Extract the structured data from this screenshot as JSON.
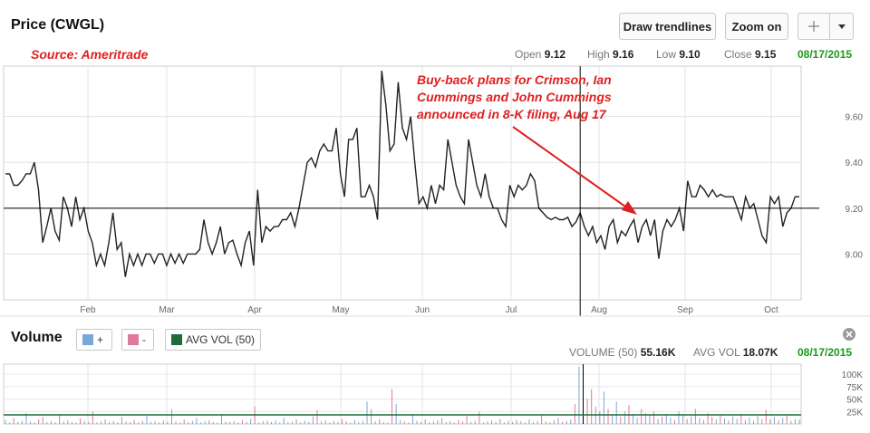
{
  "header": {
    "title": "Price (CWGL)",
    "source": "Source: Ameritrade",
    "buttons": {
      "draw": "Draw trendlines",
      "zoom": "Zoom on"
    },
    "crosshair_icon": "crosshair-icon",
    "dropdown_icon": "caret-down-icon"
  },
  "ohlc": {
    "open_label": "Open",
    "open": "9.12",
    "high_label": "High",
    "high": "9.16",
    "low_label": "Low",
    "low": "9.10",
    "close_label": "Close",
    "close": "9.15",
    "date": "08/17/2015"
  },
  "annotation": {
    "line1": "Buy-back plans for Crimson, Ian",
    "line2": "Cummings and John Cummings",
    "line3": "announced in 8-K filing, Aug 17"
  },
  "volume_panel": {
    "title": "Volume",
    "up_label": "+",
    "down_label": "-",
    "avg_label": "AVG VOL (50)",
    "volume_label": "VOLUME (50)",
    "volume_value": "55.16K",
    "avgvol_label": "AVG VOL",
    "avgvol_value": "18.07K",
    "date": "08/17/2015",
    "close_icon": "close-circle-icon"
  },
  "colors": {
    "up": "#7aa7d9",
    "down": "#e07a9a",
    "avg": "#1f6b3a",
    "accent_red": "#e02020",
    "green": "#1a9a1a"
  },
  "chart_data": [
    {
      "type": "line",
      "series_name": "CWGL",
      "x_ticks": [
        "Feb",
        "Mar",
        "Apr",
        "May",
        "Jun",
        "Jul",
        "Aug",
        "Sep",
        "Oct"
      ],
      "y_ticks": [
        "9.00",
        "9.20",
        "9.40",
        "9.60"
      ],
      "ylim": [
        8.8,
        9.82
      ],
      "crosshair": {
        "date_index": 139,
        "price": 9.2
      },
      "values": [
        9.35,
        9.35,
        9.3,
        9.3,
        9.32,
        9.35,
        9.35,
        9.4,
        9.28,
        9.05,
        9.12,
        9.2,
        9.1,
        9.06,
        9.25,
        9.2,
        9.12,
        9.25,
        9.15,
        9.2,
        9.1,
        9.05,
        8.95,
        9.0,
        8.95,
        9.05,
        9.18,
        9.02,
        9.05,
        8.9,
        9.0,
        8.95,
        9.0,
        8.95,
        9.0,
        9.0,
        8.96,
        9.0,
        9.0,
        8.95,
        9.0,
        8.96,
        9.0,
        8.96,
        9.0,
        9.0,
        9.0,
        9.02,
        9.15,
        9.05,
        9.0,
        9.05,
        9.12,
        9.0,
        9.05,
        9.06,
        9.0,
        8.95,
        9.05,
        9.1,
        8.95,
        9.28,
        9.05,
        9.12,
        9.1,
        9.12,
        9.12,
        9.15,
        9.15,
        9.18,
        9.12,
        9.2,
        9.3,
        9.4,
        9.42,
        9.38,
        9.45,
        9.48,
        9.45,
        9.45,
        9.55,
        9.35,
        9.25,
        9.5,
        9.5,
        9.55,
        9.25,
        9.25,
        9.3,
        9.25,
        9.15,
        9.8,
        9.65,
        9.45,
        9.48,
        9.75,
        9.55,
        9.5,
        9.6,
        9.4,
        9.22,
        9.25,
        9.2,
        9.3,
        9.22,
        9.3,
        9.28,
        9.5,
        9.4,
        9.3,
        9.25,
        9.22,
        9.5,
        9.4,
        9.3,
        9.25,
        9.35,
        9.25,
        9.2,
        9.2,
        9.15,
        9.12,
        9.3,
        9.25,
        9.3,
        9.28,
        9.3,
        9.35,
        9.32,
        9.2,
        9.18,
        9.16,
        9.15,
        9.16,
        9.15,
        9.15,
        9.16,
        9.12,
        9.14,
        9.18,
        9.12,
        9.08,
        9.12,
        9.05,
        9.08,
        9.02,
        9.12,
        9.15,
        9.05,
        9.1,
        9.08,
        9.12,
        9.15,
        9.05,
        9.12,
        9.15,
        9.08,
        9.15,
        8.98,
        9.1,
        9.15,
        9.12,
        9.15,
        9.2,
        9.1,
        9.32,
        9.25,
        9.25,
        9.3,
        9.28,
        9.25,
        9.28,
        9.25,
        9.26,
        9.25,
        9.25,
        9.25,
        9.2,
        9.15,
        9.25,
        9.2,
        9.22,
        9.15,
        9.08,
        9.05,
        9.25,
        9.22,
        9.25,
        9.12,
        9.18,
        9.2,
        9.25,
        9.25
      ]
    },
    {
      "type": "bar",
      "series_name": "Volume",
      "y_ticks": [
        "100K",
        "75K",
        "50K",
        "25K"
      ],
      "ylim": [
        0,
        120000
      ],
      "avg_level": 18070,
      "values": [
        8000,
        3000,
        12000,
        4000,
        6000,
        22000,
        5000,
        3000,
        9000,
        14000,
        4000,
        6000,
        3000,
        18000,
        5000,
        7000,
        4000,
        3000,
        11000,
        6000,
        4000,
        25000,
        3000,
        5000,
        9000,
        4000,
        6000,
        3000,
        14000,
        5000,
        4000,
        8000,
        3000,
        6000,
        16000,
        4000,
        5000,
        3000,
        7000,
        4000,
        30000,
        5000,
        3000,
        9000,
        4000,
        6000,
        12000,
        3000,
        5000,
        7000,
        4000,
        3000,
        20000,
        5000,
        4000,
        6000,
        3000,
        8000,
        4000,
        10000,
        35000,
        3000,
        5000,
        6000,
        4000,
        7000,
        3000,
        12000,
        4000,
        5000,
        9000,
        3000,
        6000,
        4000,
        15000,
        28000,
        5000,
        7000,
        3000,
        6000,
        4000,
        10000,
        5000,
        3000,
        8000,
        4000,
        6000,
        45000,
        30000,
        5000,
        9000,
        4000,
        3000,
        70000,
        40000,
        8000,
        5000,
        3000,
        20000,
        6000,
        4000,
        9000,
        3000,
        5000,
        7000,
        12000,
        4000,
        6000,
        3000,
        8000,
        5000,
        16000,
        4000,
        6000,
        25000,
        3000,
        5000,
        7000,
        4000,
        10000,
        3000,
        6000,
        4000,
        8000,
        5000,
        3000,
        9000,
        4000,
        6000,
        18000,
        5000,
        3000,
        7000,
        12000,
        4000,
        6000,
        9000,
        40000,
        115000,
        60000,
        50000,
        70000,
        35000,
        25000,
        65000,
        30000,
        20000,
        45000,
        15000,
        25000,
        38000,
        20000,
        12000,
        30000,
        22000,
        18000,
        25000,
        10000,
        15000,
        20000,
        12000,
        8000,
        25000,
        18000,
        10000,
        15000,
        30000,
        12000,
        8000,
        22000,
        14000,
        9000,
        18000,
        11000,
        7000,
        15000,
        10000,
        20000,
        8000,
        12000,
        6000,
        16000,
        10000,
        28000,
        9000,
        14000,
        7000,
        12000,
        18000,
        6000,
        10000,
        9000
      ]
    }
  ]
}
